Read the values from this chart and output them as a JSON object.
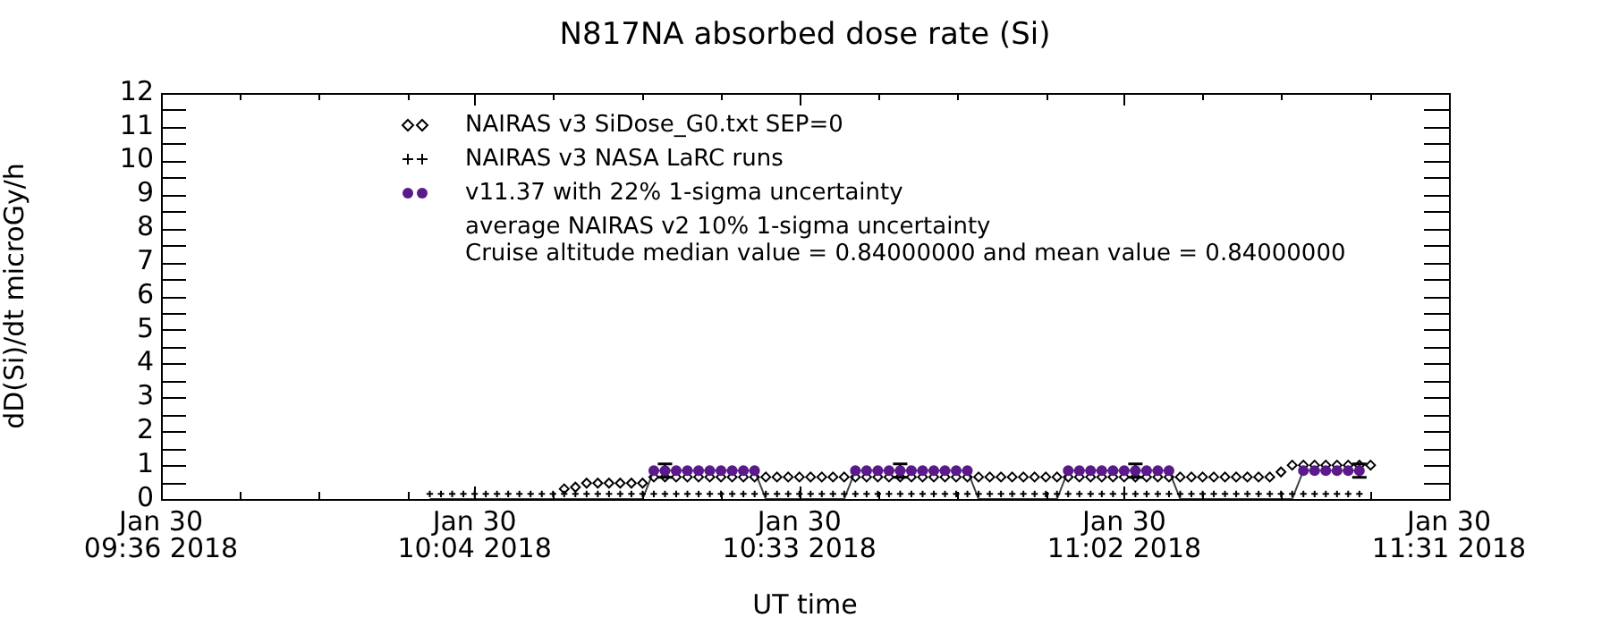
{
  "chart_data": {
    "type": "scatter",
    "title": "N817NA absorbed dose rate (Si)",
    "xlabel": "UT time",
    "ylabel": "dD(Si)/dt microGy/h",
    "xlim": [
      "2018-01-30T09:36",
      "2018-01-30T11:31"
    ],
    "xticks": [
      {
        "value": "2018-01-30T09:36",
        "label": "Jan 30\n09:36 2018"
      },
      {
        "value": "2018-01-30T09:43",
        "label": null
      },
      {
        "value": "2018-01-30T09:50",
        "label": null
      },
      {
        "value": "2018-01-30T09:58",
        "label": null
      },
      {
        "value": "2018-01-30T10:04",
        "label": "Jan 30\n10:04 2018"
      },
      {
        "value": "2018-01-30T10:11",
        "label": null
      },
      {
        "value": "2018-01-30T10:19",
        "label": null
      },
      {
        "value": "2018-01-30T10:26",
        "label": null
      },
      {
        "value": "2018-01-30T10:33",
        "label": "Jan 30\n10:33 2018"
      },
      {
        "value": "2018-01-30T10:40",
        "label": null
      },
      {
        "value": "2018-01-30T10:47",
        "label": null
      },
      {
        "value": "2018-01-30T10:55",
        "label": null
      },
      {
        "value": "2018-01-30T11:02",
        "label": "Jan 30\n11:02 2018"
      },
      {
        "value": "2018-01-30T11:09",
        "label": null
      },
      {
        "value": "2018-01-30T11:16",
        "label": null
      },
      {
        "value": "2018-01-30T11:24",
        "label": null
      },
      {
        "value": "2018-01-30T11:31",
        "label": "Jan 30\n11:31 2018"
      }
    ],
    "ylim": [
      0,
      12
    ],
    "yticks": [
      0,
      {
        "value": 0.5,
        "label": null
      },
      1,
      {
        "value": 1.5,
        "label": null
      },
      2,
      {
        "value": 2.5,
        "label": null
      },
      3,
      {
        "value": 3.5,
        "label": null
      },
      4,
      {
        "value": 4.5,
        "label": null
      },
      5,
      {
        "value": 5.5,
        "label": null
      },
      6,
      {
        "value": 6.5,
        "label": null
      },
      7,
      {
        "value": 7.5,
        "label": null
      },
      8,
      {
        "value": 8.5,
        "label": null
      },
      9,
      {
        "value": 9.5,
        "label": null
      },
      10,
      {
        "value": 10.5,
        "label": null
      },
      11,
      {
        "value": 11.5,
        "label": null
      },
      12
    ],
    "legend": "top",
    "grid": false,
    "annotations": [
      "average NAIRAS v2 10% 1-sigma uncertainty",
      "Cruise altitude median value = 0.84000000 and mean value = 0.84000000"
    ],
    "series": [
      {
        "name": "NAIRAS v3 SiDose_G0.txt SEP=0",
        "marker": "diamond",
        "color": "#000000",
        "x": [
          "2018-01-30T10:12",
          "2018-01-30T10:13",
          "2018-01-30T10:14",
          "2018-01-30T10:15",
          "2018-01-30T10:16",
          "2018-01-30T10:17",
          "2018-01-30T10:18",
          "2018-01-30T10:19",
          "2018-01-30T10:20",
          "2018-01-30T10:21",
          "2018-01-30T10:22",
          "2018-01-30T10:23",
          "2018-01-30T10:24",
          "2018-01-30T10:25",
          "2018-01-30T10:26",
          "2018-01-30T10:27",
          "2018-01-30T10:28",
          "2018-01-30T10:29",
          "2018-01-30T10:30",
          "2018-01-30T10:31",
          "2018-01-30T10:32",
          "2018-01-30T10:33",
          "2018-01-30T10:34",
          "2018-01-30T10:35",
          "2018-01-30T10:36",
          "2018-01-30T10:37",
          "2018-01-30T10:38",
          "2018-01-30T10:39",
          "2018-01-30T10:40",
          "2018-01-30T10:41",
          "2018-01-30T10:42",
          "2018-01-30T10:43",
          "2018-01-30T10:44",
          "2018-01-30T10:45",
          "2018-01-30T10:46",
          "2018-01-30T10:47",
          "2018-01-30T10:48",
          "2018-01-30T10:49",
          "2018-01-30T10:50",
          "2018-01-30T10:51",
          "2018-01-30T10:52",
          "2018-01-30T10:53",
          "2018-01-30T10:54",
          "2018-01-30T10:55",
          "2018-01-30T10:56",
          "2018-01-30T10:57",
          "2018-01-30T10:58",
          "2018-01-30T10:59",
          "2018-01-30T11:00",
          "2018-01-30T11:01",
          "2018-01-30T11:02",
          "2018-01-30T11:03",
          "2018-01-30T11:04",
          "2018-01-30T11:05",
          "2018-01-30T11:06",
          "2018-01-30T11:07",
          "2018-01-30T11:08",
          "2018-01-30T11:09",
          "2018-01-30T11:10",
          "2018-01-30T11:11",
          "2018-01-30T11:12",
          "2018-01-30T11:13",
          "2018-01-30T11:14",
          "2018-01-30T11:15",
          "2018-01-30T11:16",
          "2018-01-30T11:17",
          "2018-01-30T11:18",
          "2018-01-30T11:19",
          "2018-01-30T11:20",
          "2018-01-30T11:21",
          "2018-01-30T11:22",
          "2018-01-30T11:23",
          "2018-01-30T11:24"
        ],
        "values": [
          0.3,
          0.35,
          0.47,
          0.47,
          0.47,
          0.47,
          0.47,
          0.47,
          0.65,
          0.65,
          0.65,
          0.65,
          0.65,
          0.65,
          0.65,
          0.65,
          0.65,
          0.65,
          0.65,
          0.65,
          0.65,
          0.65,
          0.65,
          0.65,
          0.65,
          0.65,
          0.65,
          0.65,
          0.65,
          0.65,
          0.65,
          0.65,
          0.65,
          0.65,
          0.65,
          0.65,
          0.65,
          0.65,
          0.65,
          0.65,
          0.65,
          0.65,
          0.65,
          0.65,
          0.65,
          0.65,
          0.65,
          0.65,
          0.65,
          0.65,
          0.65,
          0.65,
          0.65,
          0.65,
          0.65,
          0.65,
          0.65,
          0.65,
          0.65,
          0.65,
          0.65,
          0.65,
          0.65,
          0.65,
          0.8,
          1.0,
          1.0,
          1.0,
          1.0,
          1.0,
          1.0,
          1.0,
          1.0
        ]
      },
      {
        "name": "NAIRAS v3 NASA LaRC runs",
        "marker": "cross",
        "color": "#000000",
        "x": [
          "2018-01-30T10:00",
          "2018-01-30T10:01",
          "2018-01-30T10:02",
          "2018-01-30T10:03",
          "2018-01-30T10:04",
          "2018-01-30T10:05",
          "2018-01-30T10:06",
          "2018-01-30T10:07",
          "2018-01-30T10:08",
          "2018-01-30T10:09",
          "2018-01-30T10:10",
          "2018-01-30T10:11",
          "2018-01-30T10:12",
          "2018-01-30T10:13",
          "2018-01-30T10:14",
          "2018-01-30T10:15",
          "2018-01-30T10:16",
          "2018-01-30T10:17",
          "2018-01-30T10:18",
          "2018-01-30T10:19",
          "2018-01-30T10:20",
          "2018-01-30T10:21",
          "2018-01-30T10:22",
          "2018-01-30T10:23",
          "2018-01-30T10:24",
          "2018-01-30T10:25",
          "2018-01-30T10:26",
          "2018-01-30T10:27",
          "2018-01-30T10:28",
          "2018-01-30T10:29",
          "2018-01-30T10:30",
          "2018-01-30T10:31",
          "2018-01-30T10:32",
          "2018-01-30T10:33",
          "2018-01-30T10:34",
          "2018-01-30T10:35",
          "2018-01-30T10:36",
          "2018-01-30T10:37",
          "2018-01-30T10:38",
          "2018-01-30T10:39",
          "2018-01-30T10:40",
          "2018-01-30T10:41",
          "2018-01-30T10:42",
          "2018-01-30T10:43",
          "2018-01-30T10:44",
          "2018-01-30T10:45",
          "2018-01-30T10:46",
          "2018-01-30T10:47",
          "2018-01-30T10:48",
          "2018-01-30T10:49",
          "2018-01-30T10:50",
          "2018-01-30T10:51",
          "2018-01-30T10:52",
          "2018-01-30T10:53",
          "2018-01-30T10:54",
          "2018-01-30T10:55",
          "2018-01-30T10:56",
          "2018-01-30T10:57",
          "2018-01-30T10:58",
          "2018-01-30T10:59",
          "2018-01-30T11:00",
          "2018-01-30T11:01",
          "2018-01-30T11:02",
          "2018-01-30T11:03",
          "2018-01-30T11:04",
          "2018-01-30T11:05",
          "2018-01-30T11:06",
          "2018-01-30T11:07",
          "2018-01-30T11:08",
          "2018-01-30T11:09",
          "2018-01-30T11:10",
          "2018-01-30T11:11",
          "2018-01-30T11:12",
          "2018-01-30T11:13",
          "2018-01-30T11:14",
          "2018-01-30T11:15",
          "2018-01-30T11:16",
          "2018-01-30T11:17",
          "2018-01-30T11:18",
          "2018-01-30T11:19",
          "2018-01-30T11:20",
          "2018-01-30T11:21",
          "2018-01-30T11:22",
          "2018-01-30T11:23"
        ],
        "values": [
          0.15,
          0.15,
          0.15,
          0.15,
          0.15,
          0.15,
          0.15,
          0.15,
          0.15,
          0.15,
          0.15,
          0.15,
          0.15,
          0.15,
          0.15,
          0.15,
          0.15,
          0.15,
          0.15,
          0.15,
          0.15,
          0.15,
          0.15,
          0.15,
          0.15,
          0.15,
          0.15,
          0.15,
          0.15,
          0.15,
          0.15,
          0.15,
          0.15,
          0.15,
          0.15,
          0.15,
          0.15,
          0.15,
          0.15,
          0.15,
          0.15,
          0.15,
          0.15,
          0.15,
          0.15,
          0.15,
          0.15,
          0.15,
          0.15,
          0.15,
          0.15,
          0.15,
          0.15,
          0.15,
          0.15,
          0.15,
          0.15,
          0.15,
          0.15,
          0.15,
          0.15,
          0.15,
          0.15,
          0.15,
          0.15,
          0.15,
          0.15,
          0.15,
          0.15,
          0.15,
          0.15,
          0.15,
          0.15,
          0.15,
          0.15,
          0.15,
          0.15,
          0.15,
          0.15,
          0.15,
          0.15,
          0.15,
          0.15,
          0.15
        ]
      },
      {
        "type": "line",
        "marker": "none",
        "line_style": "solid",
        "color": "#404040",
        "x": [
          "2018-01-30T10:00",
          "2018-01-30T10:19",
          "2018-01-30T10:20",
          "2018-01-30T10:29",
          "2018-01-30T10:30",
          "2018-01-30T10:37",
          "2018-01-30T10:38",
          "2018-01-30T10:48",
          "2018-01-30T10:49",
          "2018-01-30T10:56",
          "2018-01-30T10:57",
          "2018-01-30T11:06",
          "2018-01-30T11:07",
          "2018-01-30T11:17",
          "2018-01-30T11:18",
          "2018-01-30T11:23"
        ],
        "values": [
          0,
          0,
          0.84,
          0.84,
          0,
          0,
          0.84,
          0.84,
          0,
          0,
          0.84,
          0.84,
          0,
          0,
          0.84,
          0.84
        ]
      },
      {
        "name": "v11.37 with 22% 1-sigma uncertainty",
        "marker": "circle",
        "color": "#5b1a8c",
        "x": [
          "2018-01-30T10:20",
          "2018-01-30T10:21",
          "2018-01-30T10:22",
          "2018-01-30T10:23",
          "2018-01-30T10:24",
          "2018-01-30T10:25",
          "2018-01-30T10:26",
          "2018-01-30T10:27",
          "2018-01-30T10:28",
          "2018-01-30T10:29",
          "2018-01-30T10:38",
          "2018-01-30T10:39",
          "2018-01-30T10:40",
          "2018-01-30T10:41",
          "2018-01-30T10:42",
          "2018-01-30T10:43",
          "2018-01-30T10:44",
          "2018-01-30T10:45",
          "2018-01-30T10:46",
          "2018-01-30T10:47",
          "2018-01-30T10:48",
          "2018-01-30T10:57",
          "2018-01-30T10:58",
          "2018-01-30T10:59",
          "2018-01-30T11:00",
          "2018-01-30T11:01",
          "2018-01-30T11:02",
          "2018-01-30T11:03",
          "2018-01-30T11:04",
          "2018-01-30T11:05",
          "2018-01-30T11:06",
          "2018-01-30T11:18",
          "2018-01-30T11:19",
          "2018-01-30T11:20",
          "2018-01-30T11:21",
          "2018-01-30T11:22",
          "2018-01-30T11:23"
        ],
        "values": [
          0.84,
          0.84,
          0.84,
          0.84,
          0.84,
          0.84,
          0.84,
          0.84,
          0.84,
          0.84,
          0.84,
          0.84,
          0.84,
          0.84,
          0.84,
          0.84,
          0.84,
          0.84,
          0.84,
          0.84,
          0.84,
          0.84,
          0.84,
          0.84,
          0.84,
          0.84,
          0.84,
          0.84,
          0.84,
          0.84,
          0.84,
          0.84,
          0.84,
          0.84,
          0.84,
          0.84,
          0.84
        ],
        "errors": [
          null,
          0.2,
          null,
          null,
          null,
          null,
          null,
          null,
          null,
          null,
          null,
          null,
          null,
          null,
          0.2,
          null,
          null,
          null,
          null,
          null,
          null,
          null,
          null,
          null,
          null,
          null,
          null,
          0.2,
          null,
          null,
          null,
          null,
          null,
          null,
          null,
          null,
          0.2
        ]
      }
    ]
  }
}
